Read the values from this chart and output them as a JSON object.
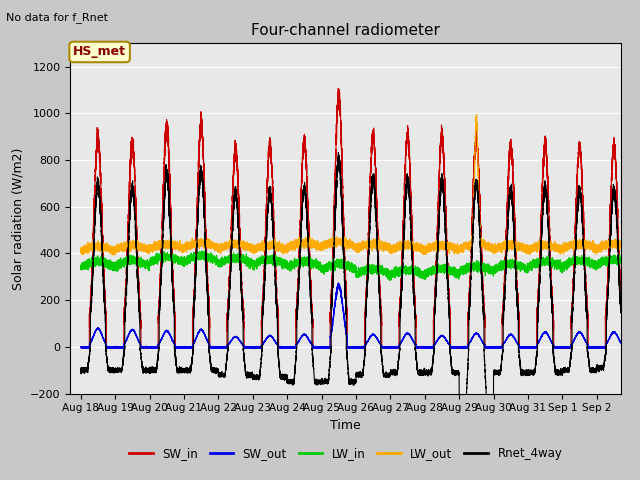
{
  "title": "Four-channel radiometer",
  "top_left_text": "No data for f_Rnet",
  "box_label": "HS_met",
  "ylabel": "Solar radiation (W/m2)",
  "xlabel": "Time",
  "ylim": [
    -200,
    1300
  ],
  "yticks": [
    -200,
    0,
    200,
    400,
    600,
    800,
    1000,
    1200
  ],
  "xlim_start": -0.3,
  "xlim_end": 15.7,
  "xtick_labels": [
    "Aug 18",
    "Aug 19",
    "Aug 20",
    "Aug 21",
    "Aug 22",
    "Aug 23",
    "Aug 24",
    "Aug 25",
    "Aug 26",
    "Aug 27",
    "Aug 28",
    "Aug 29",
    "Aug 30",
    "Aug 31",
    "Sep 1",
    "Sep 2"
  ],
  "xtick_positions": [
    0,
    1,
    2,
    3,
    4,
    5,
    6,
    7,
    8,
    9,
    10,
    11,
    12,
    13,
    14,
    15
  ],
  "fig_bg_color": "#c8c8c8",
  "plot_bg_color": "#e8e8e8",
  "legend": [
    {
      "label": "SW_in",
      "color": "#cc0000"
    },
    {
      "label": "SW_out",
      "color": "#0000ee"
    },
    {
      "label": "LW_in",
      "color": "#00cc00"
    },
    {
      "label": "LW_out",
      "color": "#ffaa00"
    },
    {
      "label": "Rnet_4way",
      "color": "#000000"
    }
  ],
  "num_days": 16,
  "sw_in_peaks": [
    900,
    880,
    940,
    950,
    850,
    860,
    880,
    1080,
    910,
    905,
    905,
    890,
    860,
    870,
    860,
    860
  ],
  "sw_out_peaks": [
    80,
    75,
    70,
    75,
    45,
    50,
    55,
    265,
    55,
    60,
    50,
    60,
    55,
    65,
    65,
    65
  ],
  "lw_in_base": [
    340,
    345,
    360,
    365,
    355,
    350,
    340,
    330,
    310,
    305,
    310,
    320,
    330,
    340,
    345,
    350
  ],
  "lw_out_base": [
    410,
    415,
    420,
    425,
    420,
    415,
    425,
    430,
    420,
    415,
    415,
    420,
    415,
    415,
    420,
    420
  ],
  "rnet_peaks": [
    700,
    680,
    740,
    750,
    660,
    665,
    680,
    800,
    720,
    710,
    710,
    700,
    670,
    680,
    670,
    670
  ],
  "rnet_night": [
    -100,
    -100,
    -100,
    -100,
    -120,
    -130,
    -150,
    -150,
    -120,
    -110,
    -110,
    -240,
    -110,
    -110,
    -100,
    -90
  ]
}
